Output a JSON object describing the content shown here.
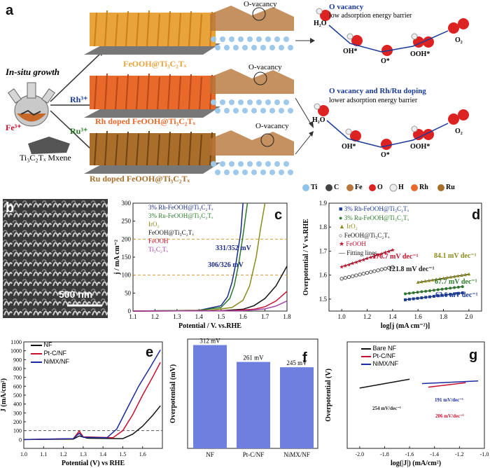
{
  "panel_a": {
    "letter": "a",
    "insitu_label": "In-situ growth",
    "fe_label": "Fe³⁺",
    "mxene_label": "Ti₃C₂Tₓ Mxene",
    "rh_ion": "Rh³⁺",
    "ru_ion": "Ru³⁺",
    "product_1": "FeOOH@Ti₃C₂Tₓ",
    "product_2": "Rh doped FeOOH@Ti₃C₂Tₓ",
    "product_3": "Ru doped FeOOH@Ti₃C₂Tₓ",
    "ovacancy_1": "O-vacancy",
    "ovacancy_2": "O-vacancy",
    "ovacancy_3": "O-vacancy",
    "mech1_title": "O vacancy",
    "mech1_sub": "low adsorption energy barrier",
    "mech2_title": "O vacancy and Rh/Ru doping",
    "mech2_sub": "lower adsorption energy barrier",
    "species": [
      "H₂O",
      "OH*",
      "O*",
      "OOH*",
      "O₂"
    ],
    "legend": [
      "Ti",
      "C",
      "Fe",
      "O",
      "H",
      "Rh",
      "Ru"
    ],
    "colors": {
      "orange": "#e8a33a",
      "rh": "#e8692a",
      "ru": "#a86e2a",
      "blue": "#1a3a9a",
      "green": "#2a7a2a",
      "red": "#c8102e"
    }
  },
  "panel_b": {
    "letter": "b",
    "scalebar": "500 nm"
  },
  "panel_c": {
    "letter": "c",
    "legend": [
      "3% Rh-FeOOH@Ti₃C₂Tₓ",
      "3% Ru-FeOOH@Ti₃C₂Tₓ",
      "IrO₂",
      "FeOOH@Ti₃C₂Tₓ",
      "FeOOH",
      "Ti₃C₂Tₓ"
    ],
    "annot_1": "331/352 mV",
    "annot_2": "306/326 mV"
  },
  "panel_d": {
    "letter": "d",
    "legend": [
      "3% Rh-FeOOH@Ti₃C₂Tₓ",
      "3% Ru-FeOOH@Ti₃C₂Tₓ",
      "IrO₂",
      "FeOOH@Ti₃C₂Tₓ",
      "FeOOH",
      "Fitting lines"
    ],
    "tafel": [
      "176.7 mV dec⁻¹",
      "84.1 mV dec⁻¹",
      "121.8 mV dec⁻¹",
      "67.7 mV dec⁻¹",
      "63.6 mV dec⁻¹"
    ]
  },
  "panel_e": {
    "letter": "e",
    "legend": [
      "NF",
      "Pt-C/NF",
      "NiMX/NF"
    ]
  },
  "panel_f": {
    "letter": "f",
    "value_labels": [
      "312 mV",
      "261 mV",
      "245 mV"
    ]
  },
  "panel_g": {
    "letter": "g",
    "legend": [
      "Bare NF",
      "Pt-C/NF",
      "NiMX/NF"
    ],
    "tafel": [
      "254 mV/dec⁻¹",
      "191 mV/dec⁻¹",
      "206 mV/dec⁻¹"
    ]
  },
  "chart_data": [
    {
      "type": "line",
      "id": "c",
      "xlabel": "Potential / V. vs.RHE",
      "ylabel": "j / mA cm⁻²",
      "xlim": [
        1.1,
        1.8
      ],
      "ylim": [
        0,
        300
      ],
      "xticks": [
        1.1,
        1.2,
        1.3,
        1.4,
        1.5,
        1.6,
        1.7,
        1.8
      ],
      "yticks": [
        0,
        50,
        100,
        150,
        200,
        250,
        300
      ],
      "guides": [
        100,
        200
      ],
      "series": [
        {
          "name": "3% Rh-FeOOH@Ti₃C₂Tₓ",
          "color": "#1a2a8a",
          "x": [
            1.1,
            1.4,
            1.5,
            1.53,
            1.55,
            1.57,
            1.59,
            1.6
          ],
          "y": [
            0,
            2,
            15,
            40,
            80,
            140,
            220,
            300
          ]
        },
        {
          "name": "3% Ru-FeOOH@Ti₃C₂Tₓ",
          "color": "#2a7a2a",
          "x": [
            1.1,
            1.4,
            1.5,
            1.54,
            1.56,
            1.58,
            1.6,
            1.62
          ],
          "y": [
            0,
            2,
            10,
            35,
            70,
            130,
            210,
            300
          ]
        },
        {
          "name": "IrO₂",
          "color": "#8a8a1a",
          "x": [
            1.1,
            1.45,
            1.55,
            1.6,
            1.63,
            1.66,
            1.68,
            1.7
          ],
          "y": [
            0,
            2,
            10,
            30,
            70,
            150,
            230,
            300
          ]
        },
        {
          "name": "FeOOH@Ti₃C₂Tₓ",
          "color": "#111111",
          "x": [
            1.1,
            1.5,
            1.6,
            1.65,
            1.7,
            1.75,
            1.8
          ],
          "y": [
            0,
            1,
            5,
            15,
            35,
            70,
            125
          ]
        },
        {
          "name": "FeOOH",
          "color": "#c8102e",
          "x": [
            1.1,
            1.55,
            1.65,
            1.7,
            1.75,
            1.8
          ],
          "y": [
            0,
            1,
            5,
            12,
            28,
            55
          ]
        },
        {
          "name": "Ti₃C₂Tₓ",
          "color": "#a040a0",
          "x": [
            1.1,
            1.6,
            1.7,
            1.75,
            1.8
          ],
          "y": [
            0,
            1,
            6,
            14,
            28
          ]
        }
      ]
    },
    {
      "type": "scatter",
      "id": "d",
      "xlabel": "log[j (mA cm⁻²)]",
      "ylabel": "Overpotential / V vs.RHE",
      "xlim": [
        0.9,
        2.1
      ],
      "ylim": [
        1.45,
        1.9
      ],
      "xticks": [
        1.0,
        1.2,
        1.4,
        1.6,
        1.8,
        2.0
      ],
      "yticks": [
        1.5,
        1.6,
        1.7,
        1.8,
        1.9
      ],
      "series": [
        {
          "name": "3% Rh-FeOOH@Ti₃C₂Tₓ",
          "color": "#1a3a9a",
          "x0": 1.5,
          "x1": 1.95,
          "y0": 1.497,
          "y1": 1.526
        },
        {
          "name": "3% Ru-FeOOH@Ti₃C₂Tₓ",
          "color": "#2a7a2a",
          "x0": 1.5,
          "x1": 1.95,
          "y0": 1.522,
          "y1": 1.552
        },
        {
          "name": "IrO₂",
          "color": "#8a8a1a",
          "x0": 1.6,
          "x1": 2.0,
          "y0": 1.57,
          "y1": 1.604
        },
        {
          "name": "FeOOH@Ti₃C₂Tₓ",
          "color": "#555555",
          "x0": 1.0,
          "x1": 1.4,
          "y0": 1.585,
          "y1": 1.634
        },
        {
          "name": "FeOOH",
          "color": "#c8102e",
          "x0": 1.0,
          "x1": 1.4,
          "y0": 1.635,
          "y1": 1.705
        }
      ]
    },
    {
      "type": "line",
      "id": "e",
      "xlabel": "Potential (V) vs RHE",
      "ylabel": "J (mA/cm²)",
      "xlim": [
        1.0,
        1.7
      ],
      "ylim": [
        -100,
        1100
      ],
      "xticks": [
        1.0,
        1.1,
        1.2,
        1.3,
        1.4,
        1.5,
        1.6
      ],
      "yticks": [
        0,
        100,
        200,
        300,
        400,
        500,
        600,
        700,
        800,
        900,
        1000,
        1100
      ],
      "guides": [
        100
      ],
      "series": [
        {
          "name": "NF",
          "color": "#111111",
          "x": [
            1.0,
            1.25,
            1.28,
            1.32,
            1.5,
            1.55,
            1.6,
            1.65,
            1.69
          ],
          "y": [
            0,
            5,
            40,
            15,
            10,
            60,
            150,
            270,
            380
          ]
        },
        {
          "name": "Pt-C/NF",
          "color": "#c8102e",
          "x": [
            1.0,
            1.25,
            1.28,
            1.3,
            1.45,
            1.5,
            1.55,
            1.6,
            1.65,
            1.69
          ],
          "y": [
            0,
            10,
            95,
            30,
            20,
            100,
            280,
            500,
            700,
            870
          ]
        },
        {
          "name": "NiMX/NF",
          "color": "#1a2aa0",
          "x": [
            1.0,
            1.25,
            1.28,
            1.3,
            1.42,
            1.47,
            1.52,
            1.58,
            1.64,
            1.69
          ],
          "y": [
            0,
            10,
            70,
            25,
            20,
            120,
            340,
            600,
            820,
            1010
          ]
        }
      ]
    },
    {
      "type": "bar",
      "id": "f",
      "ylabel": "Overpotential (mV)",
      "categories": [
        "NF",
        "Pt-C/NF",
        "NiMX/NF"
      ],
      "values": [
        312,
        261,
        245
      ],
      "ylim": [
        0,
        330
      ],
      "color": "#6f7fe0"
    },
    {
      "type": "line",
      "id": "g",
      "xlabel": "log(|J|) (mA/cm²)",
      "ylabel": "Overpotential (V)",
      "xlim": [
        -2.1,
        -1.0
      ],
      "ylim": [
        -0.8,
        0.4
      ],
      "xticks": [
        -2.0,
        -1.8,
        -1.6,
        -1.4,
        -1.2,
        -1.0
      ],
      "series": [
        {
          "name": "Bare NF",
          "color": "#111111",
          "x": [
            -2.0,
            -1.6
          ],
          "y": [
            -0.12,
            -0.02
          ]
        },
        {
          "name": "Pt-C/NF",
          "color": "#c8102e",
          "x": [
            -1.45,
            -1.15
          ],
          "y": [
            -0.11,
            -0.06
          ]
        },
        {
          "name": "NiMX/NF",
          "color": "#1a2aa0",
          "x": [
            -1.5,
            -1.05
          ],
          "y": [
            -0.07,
            -0.04
          ]
        }
      ]
    }
  ]
}
